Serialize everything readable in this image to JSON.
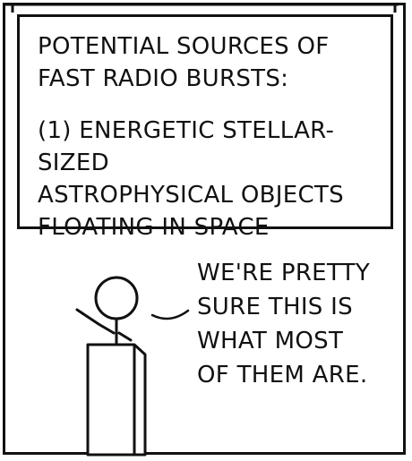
{
  "slide": {
    "heading": "POTENTIAL SOURCES OF\nFAST RADIO BURSTS:",
    "item": "(1) ENERGETIC STELLAR-SIZED\nASTROPHYSICAL OBJECTS\nFLOATING IN SPACE"
  },
  "speech": {
    "text": "WE'RE PRETTY\nSURE THIS IS\nWHAT MOST\nOF THEM ARE."
  }
}
